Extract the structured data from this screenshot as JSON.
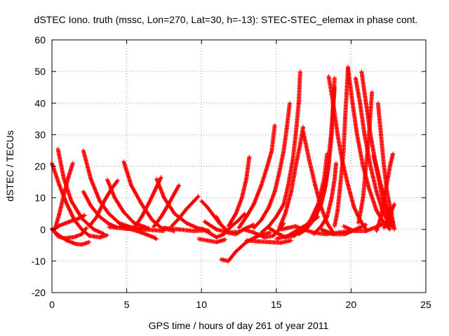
{
  "chart_data": {
    "type": "scatter",
    "title": "dSTEC Iono. truth (mssc, Lon=270, Lat=30, h=-13): STEC-STEC_elemax in phase cont.",
    "xlabel": "GPS time / hours of day 261 of year 2011",
    "ylabel": "dSTEC  / TECUs",
    "xlim": [
      0,
      25
    ],
    "ylim": [
      -20,
      60
    ],
    "xticks": [
      0,
      5,
      10,
      15,
      20,
      25
    ],
    "yticks": [
      -20,
      -10,
      0,
      10,
      20,
      30,
      40,
      50,
      60
    ],
    "grid": true,
    "marker": "plus",
    "color": "#ff0000",
    "arcs": [
      [
        [
          0.0,
          0.0
        ],
        [
          0.5,
          -2.0
        ],
        [
          1.0,
          -3.5
        ],
        [
          1.6,
          -4.6
        ],
        [
          2.0,
          -4.8
        ],
        [
          2.5,
          -4.0
        ]
      ],
      [
        [
          0.0,
          0.3
        ],
        [
          0.4,
          -2.2
        ],
        [
          0.8,
          -2.8
        ],
        [
          1.5,
          -2.4
        ],
        [
          2.0,
          -1.5
        ],
        [
          2.3,
          0.5
        ]
      ],
      [
        [
          0.1,
          0.0
        ],
        [
          0.5,
          1.2
        ],
        [
          1.2,
          2.5
        ],
        [
          1.8,
          3.5
        ],
        [
          2.2,
          4.5
        ]
      ],
      [
        [
          0.0,
          21.0
        ],
        [
          0.5,
          14.0
        ],
        [
          1.0,
          8.0
        ],
        [
          1.5,
          3.0
        ],
        [
          2.0,
          0.0
        ],
        [
          2.5,
          -2.0
        ],
        [
          3.2,
          -2.5
        ],
        [
          3.7,
          -1.8
        ]
      ],
      [
        [
          0.4,
          25.5
        ],
        [
          0.8,
          16.0
        ],
        [
          1.3,
          9.0
        ],
        [
          2.0,
          3.5
        ],
        [
          2.8,
          0.0
        ],
        [
          3.5,
          -1.5
        ]
      ],
      [
        [
          0.2,
          0.2
        ],
        [
          0.5,
          5.0
        ],
        [
          0.8,
          11.0
        ],
        [
          1.1,
          16.5
        ],
        [
          1.4,
          21.0
        ]
      ],
      [
        [
          2.1,
          25.0
        ],
        [
          2.6,
          16.0
        ],
        [
          3.2,
          9.0
        ],
        [
          3.8,
          5.0
        ],
        [
          4.5,
          2.0
        ],
        [
          5.2,
          0.8
        ],
        [
          6.0,
          0.2
        ]
      ],
      [
        [
          2.1,
          12.0
        ],
        [
          2.6,
          7.5
        ],
        [
          3.2,
          4.0
        ],
        [
          3.8,
          1.8
        ],
        [
          4.4,
          0.5
        ]
      ],
      [
        [
          2.5,
          1.0
        ],
        [
          3.0,
          4.0
        ],
        [
          3.5,
          9.0
        ],
        [
          4.0,
          13.0
        ],
        [
          4.4,
          15.5
        ]
      ],
      [
        [
          3.7,
          15.8
        ],
        [
          4.2,
          10.0
        ],
        [
          4.8,
          5.5
        ],
        [
          5.5,
          2.0
        ],
        [
          6.5,
          0.3
        ]
      ],
      [
        [
          4.8,
          21.5
        ],
        [
          5.3,
          14.0
        ],
        [
          6.0,
          8.0
        ],
        [
          6.7,
          3.0
        ],
        [
          7.3,
          0.5
        ],
        [
          8.2,
          -0.5
        ]
      ],
      [
        [
          4.5,
          1.0
        ],
        [
          5.2,
          0.2
        ],
        [
          6.0,
          -1.0
        ],
        [
          6.8,
          -2.5
        ],
        [
          7.0,
          -3.0
        ]
      ],
      [
        [
          3.8,
          0.8
        ],
        [
          5.0,
          0.2
        ],
        [
          6.2,
          0.0
        ],
        [
          7.5,
          -0.5
        ]
      ],
      [
        [
          5.5,
          0.5
        ],
        [
          6.0,
          4.0
        ],
        [
          6.5,
          8.5
        ],
        [
          7.0,
          13.5
        ],
        [
          7.3,
          16.5
        ]
      ],
      [
        [
          7.0,
          16.0
        ],
        [
          7.5,
          10.0
        ],
        [
          8.2,
          5.0
        ],
        [
          9.0,
          2.0
        ],
        [
          9.7,
          0.5
        ],
        [
          10.5,
          -0.5
        ]
      ],
      [
        [
          6.8,
          0.8
        ],
        [
          7.3,
          4.0
        ],
        [
          7.8,
          8.0
        ],
        [
          8.2,
          11.5
        ],
        [
          8.5,
          14.0
        ]
      ],
      [
        [
          8.0,
          1.0
        ],
        [
          8.5,
          3.5
        ],
        [
          9.0,
          6.5
        ],
        [
          9.5,
          9.0
        ],
        [
          9.8,
          10.5
        ]
      ],
      [
        [
          7.5,
          0.5
        ],
        [
          8.5,
          0.0
        ],
        [
          9.5,
          -0.5
        ],
        [
          10.2,
          -0.3
        ]
      ],
      [
        [
          10.2,
          2.5
        ],
        [
          11.0,
          0.0
        ],
        [
          11.8,
          -1.0
        ],
        [
          12.5,
          -0.8
        ]
      ],
      [
        [
          10.0,
          9.0
        ],
        [
          10.4,
          7.0
        ],
        [
          10.8,
          4.5
        ],
        [
          11.2,
          2.0
        ],
        [
          11.6,
          0.2
        ]
      ],
      [
        [
          10.0,
          0.3
        ],
        [
          10.5,
          -1.0
        ],
        [
          11.0,
          -2.5
        ],
        [
          11.5,
          -1.5
        ],
        [
          12.0,
          1.0
        ],
        [
          12.5,
          3.0
        ],
        [
          12.9,
          5.0
        ]
      ],
      [
        [
          9.8,
          -3.0
        ],
        [
          10.4,
          -3.5
        ],
        [
          11.0,
          -4.0
        ],
        [
          11.6,
          -3.2
        ]
      ],
      [
        [
          11.3,
          -9.5
        ],
        [
          11.8,
          -10.0
        ],
        [
          12.3,
          -7.0
        ],
        [
          13.0,
          -4.0
        ],
        [
          13.8,
          -2.0
        ],
        [
          14.6,
          -1.0
        ]
      ],
      [
        [
          11.0,
          4.0
        ],
        [
          11.3,
          1.5
        ],
        [
          11.8,
          -1.0
        ],
        [
          12.3,
          -1.5
        ],
        [
          12.8,
          0.0
        ],
        [
          13.5,
          1.5
        ]
      ],
      [
        [
          11.8,
          1.0
        ],
        [
          12.3,
          5.0
        ],
        [
          12.7,
          10.0
        ],
        [
          13.0,
          16.0
        ],
        [
          13.2,
          23.0
        ]
      ],
      [
        [
          12.5,
          0.5
        ],
        [
          13.0,
          4.0
        ],
        [
          13.5,
          8.0
        ],
        [
          14.0,
          14.0
        ],
        [
          14.4,
          20.0
        ],
        [
          14.7,
          25.0
        ],
        [
          14.9,
          33.0
        ]
      ],
      [
        [
          12.8,
          0.0
        ],
        [
          13.5,
          -1.0
        ],
        [
          14.2,
          -2.5
        ],
        [
          14.8,
          -2.0
        ],
        [
          15.2,
          0.0
        ],
        [
          15.5,
          2.0
        ]
      ],
      [
        [
          13.0,
          -3.5
        ],
        [
          13.8,
          -3.8
        ],
        [
          14.5,
          -4.0
        ],
        [
          15.3,
          -4.2
        ],
        [
          16.0,
          -3.5
        ]
      ],
      [
        [
          13.5,
          0.5
        ],
        [
          14.0,
          3.0
        ],
        [
          14.5,
          7.0
        ],
        [
          14.9,
          12.0
        ],
        [
          15.2,
          18.0
        ],
        [
          15.5,
          25.0
        ],
        [
          15.7,
          32.0
        ],
        [
          15.9,
          40.0
        ]
      ],
      [
        [
          14.0,
          -1.0
        ],
        [
          14.5,
          1.0
        ],
        [
          15.0,
          4.0
        ],
        [
          15.5,
          8.0
        ],
        [
          15.8,
          14.0
        ],
        [
          16.1,
          22.0
        ],
        [
          16.3,
          30.0
        ],
        [
          16.5,
          40.0
        ],
        [
          16.6,
          50.0
        ]
      ],
      [
        [
          15.0,
          -3.0
        ],
        [
          15.8,
          -2.0
        ],
        [
          16.5,
          0.0
        ],
        [
          17.2,
          2.0
        ],
        [
          17.8,
          4.0
        ]
      ],
      [
        [
          15.2,
          0.5
        ],
        [
          15.6,
          5.0
        ],
        [
          16.0,
          12.0
        ],
        [
          16.3,
          20.0
        ],
        [
          16.6,
          27.0
        ],
        [
          16.8,
          32.5
        ]
      ],
      [
        [
          16.8,
          31.0
        ],
        [
          17.2,
          22.0
        ],
        [
          17.6,
          14.0
        ],
        [
          18.0,
          7.0
        ],
        [
          18.4,
          2.0
        ],
        [
          18.8,
          -1.0
        ]
      ],
      [
        [
          16.5,
          -1.5
        ],
        [
          17.0,
          0.0
        ],
        [
          17.5,
          3.0
        ],
        [
          17.9,
          7.0
        ],
        [
          18.2,
          12.0
        ],
        [
          18.5,
          20.0
        ],
        [
          18.7,
          30.0
        ],
        [
          18.8,
          40.0
        ],
        [
          18.9,
          48.0
        ]
      ],
      [
        [
          17.5,
          -1.5
        ],
        [
          18.0,
          1.0
        ],
        [
          18.4,
          4.0
        ],
        [
          18.7,
          10.0
        ],
        [
          18.9,
          16.0
        ],
        [
          19.0,
          21.0
        ]
      ],
      [
        [
          18.5,
          48.5
        ],
        [
          18.8,
          40.0
        ],
        [
          19.1,
          30.0
        ],
        [
          19.4,
          22.0
        ],
        [
          19.8,
          14.0
        ],
        [
          20.2,
          7.0
        ],
        [
          20.6,
          3.0
        ],
        [
          21.0,
          0.0
        ]
      ],
      [
        [
          18.9,
          1.0
        ],
        [
          19.1,
          6.0
        ],
        [
          19.3,
          15.0
        ],
        [
          19.5,
          25.0
        ],
        [
          19.6,
          35.0
        ],
        [
          19.7,
          43.0
        ],
        [
          19.8,
          51.5
        ]
      ],
      [
        [
          19.8,
          51.0
        ],
        [
          20.1,
          40.0
        ],
        [
          20.4,
          30.0
        ],
        [
          20.8,
          20.0
        ],
        [
          21.2,
          13.0
        ],
        [
          21.7,
          6.0
        ],
        [
          22.2,
          2.0
        ],
        [
          22.6,
          0.0
        ]
      ],
      [
        [
          20.3,
          48.0
        ],
        [
          20.6,
          40.0
        ],
        [
          20.9,
          30.0
        ],
        [
          21.3,
          20.0
        ],
        [
          21.7,
          12.0
        ],
        [
          22.1,
          6.0
        ],
        [
          22.6,
          1.0
        ]
      ],
      [
        [
          20.7,
          50.0
        ],
        [
          21.0,
          40.0
        ],
        [
          21.3,
          30.0
        ],
        [
          21.6,
          22.0
        ],
        [
          22.0,
          14.0
        ],
        [
          22.4,
          7.0
        ],
        [
          22.8,
          2.0
        ]
      ],
      [
        [
          18.0,
          0.0
        ],
        [
          18.8,
          -1.5
        ],
        [
          19.6,
          -1.5
        ],
        [
          20.3,
          0.0
        ],
        [
          21.0,
          1.5
        ]
      ],
      [
        [
          19.5,
          1.0
        ],
        [
          20.2,
          -0.5
        ],
        [
          21.0,
          -0.5
        ],
        [
          21.8,
          1.0
        ],
        [
          22.5,
          2.5
        ]
      ],
      [
        [
          20.5,
          2.0
        ],
        [
          20.8,
          10.0
        ],
        [
          21.0,
          20.0
        ],
        [
          21.2,
          30.0
        ],
        [
          21.4,
          43.5
        ]
      ],
      [
        [
          21.5,
          23.5
        ],
        [
          21.8,
          17.0
        ],
        [
          22.1,
          10.0
        ],
        [
          22.4,
          5.0
        ],
        [
          22.8,
          0.5
        ]
      ],
      [
        [
          21.8,
          40.0
        ],
        [
          22.0,
          30.0
        ],
        [
          22.2,
          20.0
        ],
        [
          22.4,
          12.0
        ],
        [
          22.7,
          5.0
        ],
        [
          22.9,
          0.0
        ]
      ],
      [
        [
          21.7,
          -0.5
        ],
        [
          22.0,
          4.0
        ],
        [
          22.3,
          12.0
        ],
        [
          22.6,
          20.0
        ],
        [
          22.8,
          24.0
        ]
      ],
      [
        [
          22.2,
          0.5
        ],
        [
          22.5,
          3.0
        ],
        [
          22.8,
          7.0
        ],
        [
          22.9,
          8.0
        ]
      ],
      [
        [
          14.5,
          0.5
        ],
        [
          15.0,
          -1.0
        ],
        [
          15.6,
          -2.5
        ],
        [
          16.2,
          -2.0
        ],
        [
          16.8,
          0.0
        ],
        [
          17.3,
          3.0
        ],
        [
          17.8,
          8.0
        ],
        [
          18.2,
          16.0
        ],
        [
          18.4,
          24.0
        ]
      ],
      [
        [
          15.3,
          0.0
        ],
        [
          15.8,
          0.5
        ],
        [
          16.3,
          1.0
        ],
        [
          16.8,
          0.0
        ],
        [
          17.5,
          -1.0
        ],
        [
          18.3,
          -1.5
        ],
        [
          19.2,
          -1.0
        ],
        [
          20.0,
          -0.5
        ]
      ],
      [
        [
          17.0,
          0.5
        ],
        [
          17.5,
          3.0
        ],
        [
          18.0,
          8.0
        ],
        [
          18.3,
          14.0
        ],
        [
          18.5,
          22.0
        ],
        [
          18.7,
          32.0
        ],
        [
          18.9,
          45.0
        ]
      ]
    ]
  }
}
